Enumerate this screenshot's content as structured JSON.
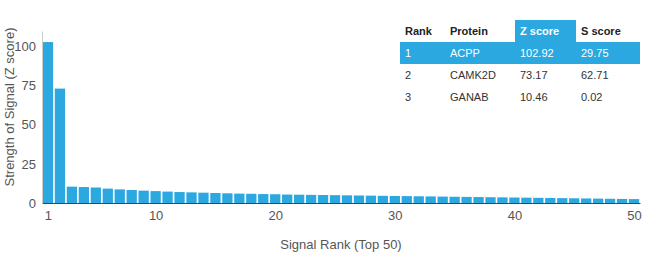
{
  "chart_data": {
    "type": "bar",
    "x_label": "Signal Rank (Top 50)",
    "y_label": "Strength of Signal (Z score)",
    "x": [
      1,
      2,
      3,
      4,
      5,
      6,
      7,
      8,
      9,
      10,
      11,
      12,
      13,
      14,
      15,
      16,
      17,
      18,
      19,
      20,
      21,
      22,
      23,
      24,
      25,
      26,
      27,
      28,
      29,
      30,
      31,
      32,
      33,
      34,
      35,
      36,
      37,
      38,
      39,
      40,
      41,
      42,
      43,
      44,
      45,
      46,
      47,
      48,
      49,
      50
    ],
    "values": [
      102.92,
      73.17,
      10.46,
      10.2,
      9.9,
      9.2,
      8.7,
      8.3,
      7.9,
      7.6,
      7.3,
      7.0,
      6.8,
      6.6,
      6.4,
      6.2,
      6.0,
      5.9,
      5.7,
      5.6,
      5.4,
      5.3,
      5.2,
      5.1,
      5.0,
      4.9,
      4.8,
      4.7,
      4.6,
      4.5,
      4.4,
      4.3,
      4.2,
      4.1,
      4.0,
      3.9,
      3.8,
      3.7,
      3.6,
      3.5,
      3.4,
      3.3,
      3.2,
      3.1,
      3.0,
      2.9,
      2.8,
      2.7,
      2.6,
      2.5
    ],
    "color": "#2aa8df",
    "xlim": [
      0.5,
      50.5
    ],
    "xticks": [
      1,
      10,
      20,
      30,
      40,
      50
    ],
    "ylim": [
      0,
      110
    ],
    "yticks": [
      0,
      25,
      50,
      75,
      100
    ],
    "grid": false,
    "table": {
      "columns": [
        "Rank",
        "Protein",
        "Z score",
        "S score"
      ],
      "rows": [
        [
          1,
          "ACPP",
          102.92,
          29.75
        ],
        [
          2,
          "CAMK2D",
          73.17,
          62.71
        ],
        [
          3,
          "GANAB",
          10.46,
          0.02
        ]
      ]
    }
  }
}
